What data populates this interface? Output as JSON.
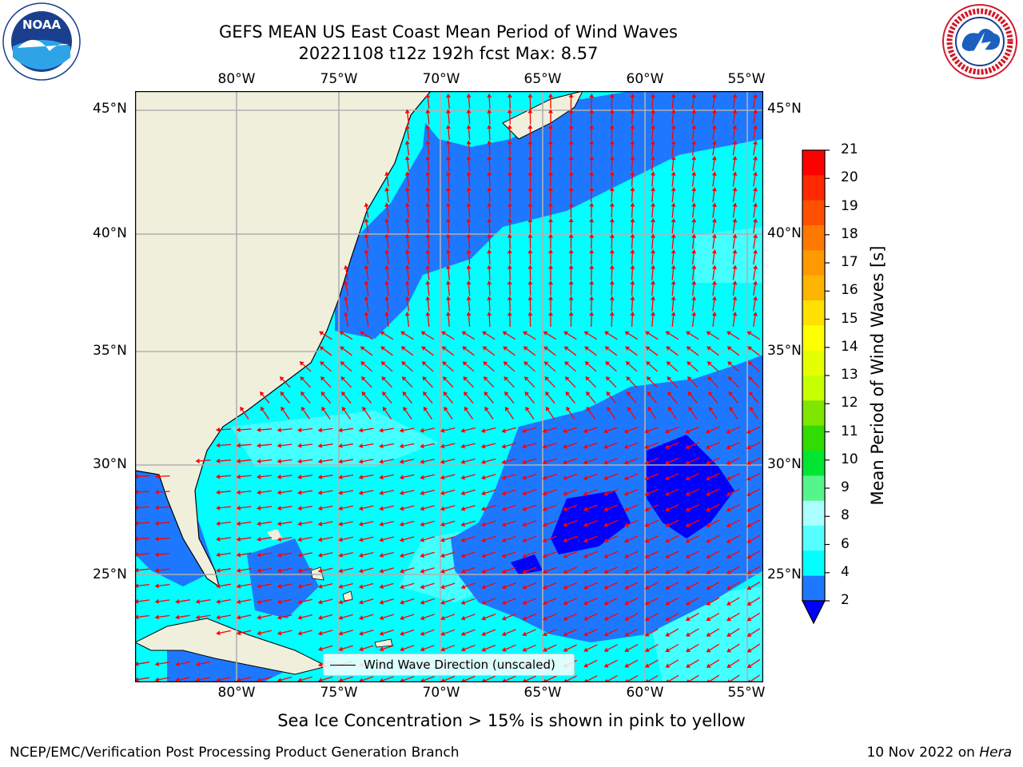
{
  "header": {
    "title_line1": "GEFS MEAN US East Coast Mean Period of Wind Waves",
    "title_line2": "20221108 t12z 192h fcst   Max: 8.57"
  },
  "map": {
    "lon_labels": [
      "80°W",
      "75°W",
      "70°W",
      "65°W",
      "60°W",
      "55°W"
    ],
    "lat_labels": [
      "45°N",
      "40°N",
      "35°N",
      "30°N",
      "25°N"
    ],
    "legend_label": "Wind Wave Direction (unscaled)",
    "ocean_color_low": "#1e78ff",
    "ocean_color_mid": "#00ffff",
    "land_color": "#efefdc",
    "arrow_color": "#ff0000"
  },
  "colorbar": {
    "label": "Mean Period of Wind Waves [s]",
    "ticks": [
      "21",
      "20",
      "19",
      "18",
      "17",
      "16",
      "15",
      "14",
      "13",
      "12",
      "11",
      "10",
      "9",
      "8",
      "6",
      "4",
      "2"
    ],
    "colors": [
      "#ff0000",
      "#ff2800",
      "#ff5000",
      "#ff7800",
      "#ff9900",
      "#ffb400",
      "#ffe000",
      "#ffff00",
      "#e6ff00",
      "#c8ff00",
      "#7fe600",
      "#32dc00",
      "#00e632",
      "#55f58c",
      "#aaffff",
      "#55ffff",
      "#00ffff",
      "#1e78ff",
      "#0000ff"
    ]
  },
  "caption": "Sea Ice Concentration > 15% is shown in pink to yellow",
  "footer": {
    "left": "NCEP/EMC/Verification Post Processing Product Generation Branch",
    "right_prefix": "10 Nov 2022 on ",
    "right_host": "Hera"
  },
  "logos": {
    "noaa_text": "NOAA",
    "noaa_ring": "NATIONAL OCEANIC AND ATMOSPHERIC ADMINISTRATION · U.S. DEPARTMENT OF COMMERCE",
    "nws_ring": "NATIONAL WEATHER SERVICE"
  }
}
